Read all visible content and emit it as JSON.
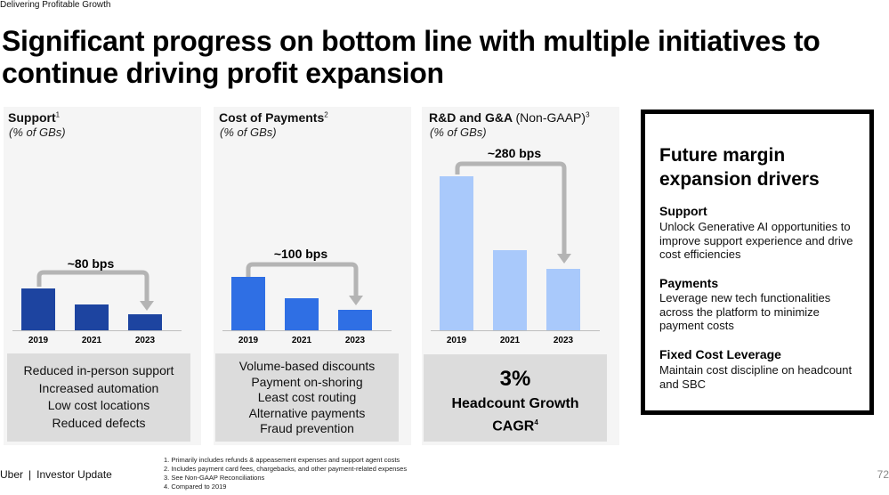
{
  "header": {
    "section_label": "Delivering Profitable Growth",
    "title_line1": "Significant progress on bottom line with multiple initiatives to",
    "title_line2": "continue driving profit expansion"
  },
  "columns": {
    "support": {
      "title": "Support",
      "footnote": "1",
      "subtitle": "(% of GBs)",
      "bps": "~80 bps"
    },
    "payments": {
      "title": "Cost of Payments",
      "footnote": "2",
      "subtitle": "(% of GBs)",
      "bps": "~100 bps"
    },
    "rnd": {
      "title": "R&D and G&A",
      "title_light": "(Non-GAAP)",
      "footnote": "3",
      "subtitle": "(% of GBs)",
      "bps": "~280 bps"
    }
  },
  "chart_data": [
    {
      "type": "bar",
      "title": "Support",
      "ylabel": "% of GBs",
      "categories": [
        "2019",
        "2021",
        "2023"
      ],
      "values": [
        100,
        62,
        38
      ],
      "annotation": "~80 bps",
      "note": "relative bar heights; absolute values not labeled"
    },
    {
      "type": "bar",
      "title": "Cost of Payments",
      "ylabel": "% of GBs",
      "categories": [
        "2019",
        "2021",
        "2023"
      ],
      "values": [
        100,
        60,
        38
      ],
      "annotation": "~100 bps",
      "note": "relative bar heights; absolute values not labeled"
    },
    {
      "type": "bar",
      "title": "R&D and G&A (Non-GAAP)",
      "ylabel": "% of GBs",
      "categories": [
        "2019",
        "2021",
        "2023"
      ],
      "values": [
        100,
        52,
        40
      ],
      "annotation": "~280 bps",
      "note": "relative bar heights; absolute values not labeled"
    }
  ],
  "boxes": {
    "support": [
      "Reduced in-person support",
      "Increased automation",
      "Low cost locations",
      "Reduced defects"
    ],
    "payments": [
      "Volume-based discounts",
      "Payment on-shoring",
      "Least cost routing",
      "Alternative payments",
      "Fraud prevention"
    ],
    "rnd": {
      "pct": "3%",
      "line1": "Headcount Growth",
      "line2": "CAGR",
      "footnote": "4"
    }
  },
  "drivers": {
    "title_line1": "Future margin",
    "title_line2": "expansion drivers",
    "items": [
      {
        "heading": "Support",
        "text": "Unlock Generative AI opportunities to improve support experience and drive cost efficiencies"
      },
      {
        "heading": "Payments",
        "text": "Leverage new tech functionalities across the platform to minimize payment costs"
      },
      {
        "heading": "Fixed Cost Leverage",
        "text": "Maintain cost discipline on headcount and SBC"
      }
    ]
  },
  "footer": {
    "brand": "Uber",
    "separator": "|",
    "doc": "Investor Update",
    "notes": [
      "1. Primarily includes refunds & appeasement expenses and support agent costs",
      "2. Includes payment card fees, chargebacks, and other payment-related expenses",
      "3. See Non-GAAP Reconciliations",
      "4. Compared to 2019"
    ],
    "page": "72"
  },
  "colors": {
    "support_bar": "#1d44a0",
    "payments_bar": "#2f6fe4",
    "rnd_bar": "#a9c9fb",
    "arrow": "#b4b4b4"
  }
}
